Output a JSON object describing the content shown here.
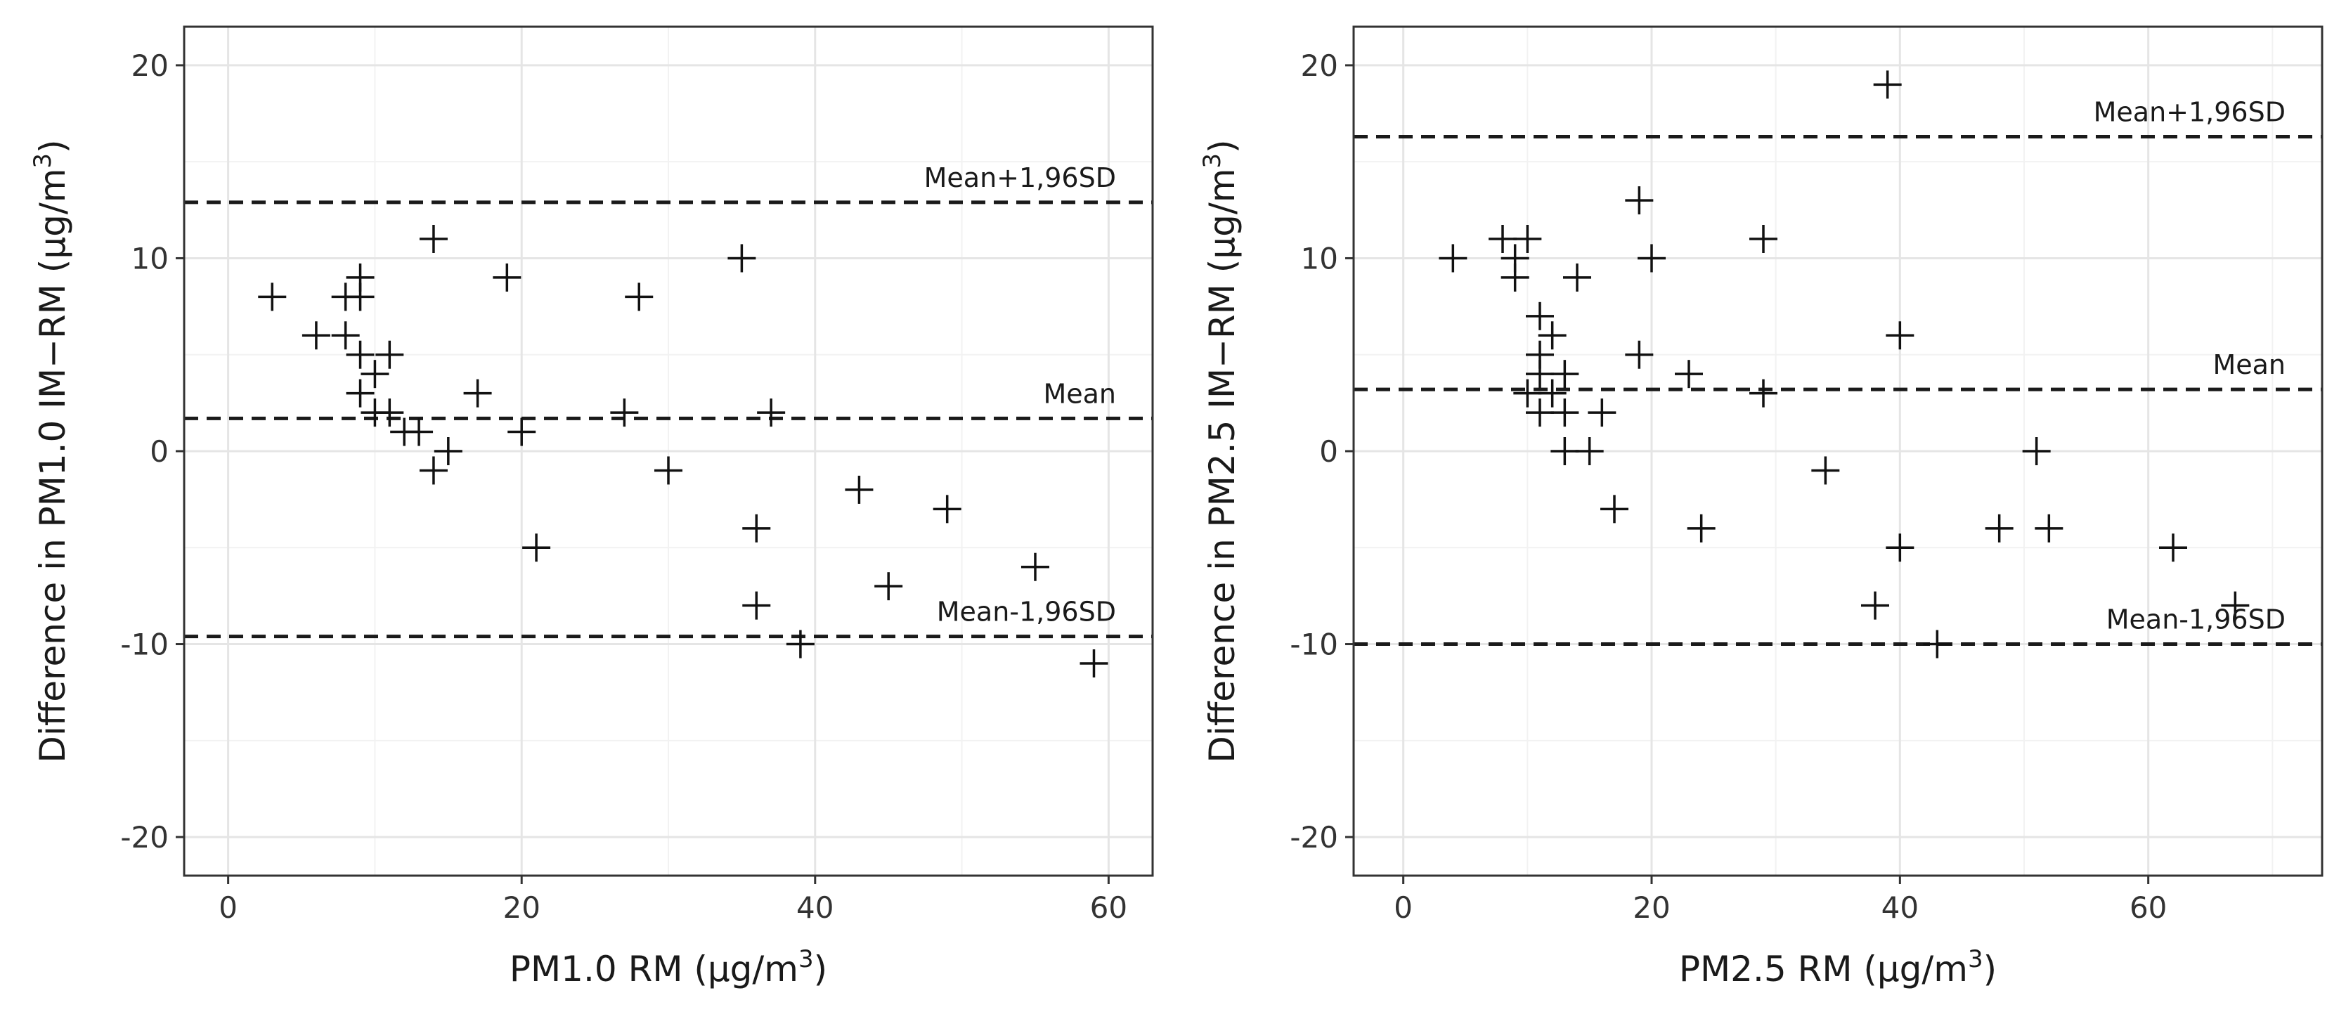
{
  "chart_data": [
    {
      "type": "scatter",
      "title": "",
      "xlabel": "PM1.0 RM (µg/m",
      "xlabel_sup": "3",
      "xlabel_suffix": ")",
      "ylabel": "Difference in PM1.0 IM−RM (µg/m",
      "ylabel_sup": "3",
      "ylabel_suffix": ")",
      "xlim": [
        -3,
        63
      ],
      "ylim": [
        -22,
        22
      ],
      "xticks": [
        0,
        20,
        40,
        60
      ],
      "yticks": [
        -20,
        -10,
        0,
        10,
        20
      ],
      "xtick_labels": [
        "0",
        "20",
        "40",
        "60"
      ],
      "ytick_labels": [
        "-20",
        "-10",
        "0",
        "10",
        "20"
      ],
      "marker": "plus",
      "grid": true,
      "points": [
        [
          3,
          8
        ],
        [
          6,
          6
        ],
        [
          8,
          8
        ],
        [
          8,
          6
        ],
        [
          9,
          9
        ],
        [
          9,
          8
        ],
        [
          9,
          5
        ],
        [
          9,
          3
        ],
        [
          10,
          4
        ],
        [
          10,
          2
        ],
        [
          11,
          5
        ],
        [
          11,
          2
        ],
        [
          12,
          1
        ],
        [
          13,
          1
        ],
        [
          14,
          11
        ],
        [
          14,
          -1
        ],
        [
          15,
          0
        ],
        [
          17,
          3
        ],
        [
          19,
          9
        ],
        [
          20,
          1
        ],
        [
          21,
          -5
        ],
        [
          27,
          2
        ],
        [
          28,
          8
        ],
        [
          30,
          -1
        ],
        [
          35,
          10
        ],
        [
          36,
          -4
        ],
        [
          36,
          -8
        ],
        [
          37,
          2
        ],
        [
          39,
          -10
        ],
        [
          43,
          -2
        ],
        [
          45,
          -7
        ],
        [
          49,
          -3
        ],
        [
          55,
          -6
        ],
        [
          59,
          -11
        ]
      ],
      "reference_lines": [
        {
          "name": "Mean+1,96SD",
          "label": "Mean+1,96SD",
          "value": 12.9
        },
        {
          "name": "Mean",
          "label": "Mean",
          "value": 1.7
        },
        {
          "name": "Mean-1,96SD",
          "label": "Mean-1,96SD",
          "value": -9.6
        }
      ]
    },
    {
      "type": "scatter",
      "title": "",
      "xlabel": "PM2.5 RM (µg/m",
      "xlabel_sup": "3",
      "xlabel_suffix": ")",
      "ylabel": "Difference in PM2.5 IM−RM (µg/m",
      "ylabel_sup": "3",
      "ylabel_suffix": ")",
      "xlim": [
        -4,
        74
      ],
      "ylim": [
        -22,
        22
      ],
      "xticks": [
        0,
        20,
        40,
        60
      ],
      "yticks": [
        -20,
        -10,
        0,
        10,
        20
      ],
      "xtick_labels": [
        "0",
        "20",
        "40",
        "60"
      ],
      "ytick_labels": [
        "-20",
        "-10",
        "0",
        "10",
        "20"
      ],
      "marker": "plus",
      "grid": true,
      "points": [
        [
          4,
          10
        ],
        [
          8,
          11
        ],
        [
          9,
          10
        ],
        [
          9,
          9
        ],
        [
          10,
          11
        ],
        [
          10,
          3
        ],
        [
          11,
          7
        ],
        [
          11,
          5
        ],
        [
          11,
          4
        ],
        [
          11,
          2
        ],
        [
          12,
          6
        ],
        [
          12,
          3
        ],
        [
          13,
          4
        ],
        [
          13,
          2
        ],
        [
          13,
          0
        ],
        [
          14,
          9
        ],
        [
          15,
          0
        ],
        [
          16,
          2
        ],
        [
          17,
          -3
        ],
        [
          19,
          13
        ],
        [
          19,
          5
        ],
        [
          20,
          10
        ],
        [
          23,
          4
        ],
        [
          24,
          -4
        ],
        [
          29,
          11
        ],
        [
          29,
          3
        ],
        [
          34,
          -1
        ],
        [
          38,
          -8
        ],
        [
          39,
          19
        ],
        [
          40,
          6
        ],
        [
          40,
          -5
        ],
        [
          43,
          -10
        ],
        [
          48,
          -4
        ],
        [
          51,
          0
        ],
        [
          52,
          -4
        ],
        [
          62,
          -5
        ],
        [
          67,
          -8
        ]
      ],
      "reference_lines": [
        {
          "name": "Mean+1,96SD",
          "label": "Mean+1,96SD",
          "value": 16.3
        },
        {
          "name": "Mean",
          "label": "Mean",
          "value": 3.2
        },
        {
          "name": "Mean-1,96SD",
          "label": "Mean-1,96SD",
          "value": -10.0
        }
      ]
    }
  ]
}
